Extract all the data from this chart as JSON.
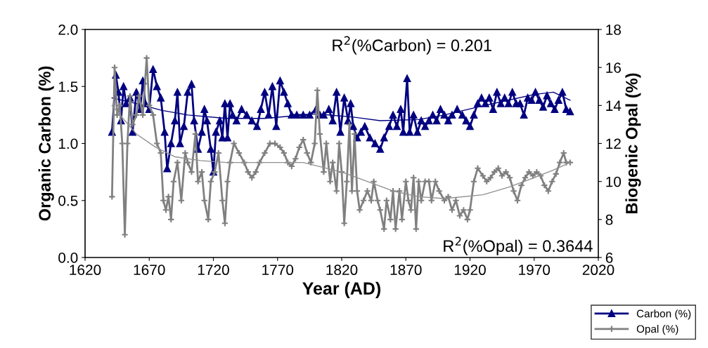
{
  "chart_data": {
    "type": "line",
    "xlabel": "Year (AD)",
    "ylabel": "Organic Carbon (%)",
    "y2label": "Biogenic Opal (%)",
    "xlim": [
      1620,
      2020
    ],
    "xticks": [
      1620,
      1670,
      1720,
      1770,
      1820,
      1870,
      1920,
      1970,
      2020
    ],
    "ylim": [
      0,
      2
    ],
    "yticks": [
      {
        "value": 0,
        "label": "0.0"
      },
      {
        "value": 0.5,
        "label": "0.5"
      },
      {
        "value": 1,
        "label": "1.0"
      },
      {
        "value": 1.5,
        "label": "1.5"
      },
      {
        "value": 2,
        "label": "2.0"
      }
    ],
    "y2lim": [
      6,
      18
    ],
    "y2ticks": [
      6,
      8,
      10,
      12,
      14,
      16,
      18
    ],
    "grid": false,
    "legend": "bottom right",
    "line_style": "solid",
    "annotations": [
      "R$^{2}$(%Carbon) = 0.201",
      "R$^{2}$(%Opal) = 0.3644"
    ],
    "series": [
      {
        "name": "Carbon (%)",
        "color": "#000080",
        "marker": "triangle",
        "x": [
          1641,
          1644,
          1646,
          1648,
          1650,
          1652,
          1655,
          1657,
          1660,
          1663,
          1665,
          1667,
          1670,
          1673,
          1676,
          1679,
          1682,
          1684,
          1687,
          1690,
          1692,
          1694,
          1697,
          1700,
          1703,
          1705,
          1708,
          1711,
          1713,
          1715,
          1718,
          1720,
          1722,
          1725,
          1727,
          1729,
          1731,
          1733,
          1735,
          1738,
          1742,
          1746,
          1750,
          1754,
          1757,
          1760,
          1763,
          1766,
          1769,
          1772,
          1775,
          1778,
          1781,
          1785,
          1790,
          1795,
          1800,
          1803,
          1806,
          1810,
          1813,
          1816,
          1819,
          1822,
          1825,
          1827,
          1829,
          1832,
          1835,
          1838,
          1842,
          1846,
          1850,
          1853,
          1857,
          1860,
          1863,
          1866,
          1868,
          1871,
          1873,
          1876,
          1879,
          1882,
          1885,
          1888,
          1891,
          1894,
          1897,
          1900,
          1903,
          1906,
          1910,
          1914,
          1917,
          1920,
          1923,
          1926,
          1929,
          1932,
          1935,
          1938,
          1941,
          1944,
          1947,
          1950,
          1953,
          1956,
          1959,
          1962,
          1965,
          1968,
          1971,
          1974,
          1977,
          1980,
          1983,
          1986,
          1989,
          1992,
          1995,
          1998
        ],
        "values": [
          1.1,
          1.6,
          1.45,
          1.2,
          1.5,
          1.35,
          1.4,
          1.1,
          1.45,
          1.3,
          1.55,
          1.35,
          1.3,
          1.65,
          1.5,
          1.4,
          1.1,
          0.78,
          1.0,
          1.2,
          1.45,
          1.0,
          1.15,
          1.45,
          1.52,
          1.2,
          0.95,
          1.1,
          1.3,
          1.2,
          0.95,
          0.75,
          1.1,
          1.2,
          1.05,
          1.35,
          1.05,
          1.35,
          1.25,
          1.2,
          1.3,
          1.25,
          1.2,
          1.15,
          1.3,
          1.45,
          1.25,
          1.5,
          1.15,
          1.55,
          1.45,
          1.35,
          1.25,
          1.25,
          1.25,
          1.25,
          1.3,
          1.25,
          1.25,
          1.3,
          1.2,
          1.45,
          1.1,
          1.4,
          1.2,
          1.35,
          1.15,
          1.05,
          1.1,
          1.15,
          1.05,
          1.0,
          0.95,
          1.05,
          1.15,
          1.25,
          1.15,
          1.3,
          1.1,
          1.57,
          1.1,
          1.25,
          1.1,
          1.2,
          1.15,
          1.2,
          1.25,
          1.2,
          1.3,
          1.25,
          1.2,
          1.25,
          1.3,
          1.25,
          1.2,
          1.15,
          1.25,
          1.35,
          1.4,
          1.35,
          1.4,
          1.3,
          1.45,
          1.35,
          1.4,
          1.35,
          1.45,
          1.35,
          1.35,
          1.25,
          1.4,
          1.38,
          1.45,
          1.38,
          1.32,
          1.42,
          1.35,
          1.3,
          1.38,
          1.45,
          1.3,
          1.28
        ]
      },
      {
        "name": "Opal (%)",
        "color": "#808080",
        "marker": "cross",
        "axis": "y2",
        "x": [
          1641,
          1643,
          1645,
          1647,
          1649,
          1651,
          1653,
          1655,
          1657,
          1660,
          1662,
          1665,
          1668,
          1670,
          1673,
          1676,
          1679,
          1681,
          1683,
          1685,
          1687,
          1689,
          1692,
          1695,
          1698,
          1700,
          1703,
          1706,
          1708,
          1711,
          1713,
          1716,
          1718,
          1721,
          1724,
          1727,
          1729,
          1731,
          1733,
          1736,
          1740,
          1744,
          1747,
          1750,
          1753,
          1756,
          1760,
          1764,
          1768,
          1772,
          1775,
          1778,
          1781,
          1784,
          1787,
          1790,
          1793,
          1796,
          1799,
          1801,
          1803,
          1806,
          1808,
          1811,
          1813,
          1816,
          1818,
          1820,
          1822,
          1824,
          1826,
          1828,
          1830,
          1832,
          1834,
          1837,
          1840,
          1843,
          1845,
          1848,
          1850,
          1853,
          1855,
          1858,
          1860,
          1862,
          1865,
          1867,
          1870,
          1872,
          1874,
          1876,
          1878,
          1880,
          1882,
          1885,
          1888,
          1890,
          1893,
          1896,
          1900,
          1903,
          1906,
          1909,
          1912,
          1915,
          1918,
          1920,
          1923,
          1926,
          1930,
          1933,
          1936,
          1939,
          1942,
          1945,
          1948,
          1951,
          1954,
          1957,
          1960,
          1963,
          1966,
          1969,
          1972,
          1975,
          1978,
          1981,
          1984,
          1987,
          1990,
          1993,
          1995,
          1998
        ],
        "values": [
          9.2,
          16,
          13.5,
          14,
          12,
          7.2,
          12,
          14.5,
          13,
          13.5,
          14.5,
          13.5,
          16.5,
          14,
          13.5,
          12,
          11.5,
          9,
          8.5,
          9.2,
          8,
          10,
          11,
          9,
          11.5,
          11,
          10.5,
          12.5,
          10,
          10.5,
          9,
          8,
          10,
          10.5,
          11.5,
          9,
          7.8,
          10,
          11,
          12,
          11.5,
          11,
          10.5,
          10.2,
          10.5,
          11,
          11.5,
          12,
          12,
          11.8,
          11.5,
          11,
          10.8,
          11.2,
          11.8,
          12.2,
          11.5,
          11,
          12,
          14.8,
          12.5,
          10.5,
          12,
          10,
          11,
          9.5,
          12,
          10.5,
          7.8,
          10,
          13,
          9.5,
          12.5,
          9.5,
          8.5,
          9,
          9.5,
          9,
          10,
          9,
          8.5,
          7.5,
          9,
          8,
          9.5,
          7.5,
          9.5,
          8,
          10,
          9,
          8.5,
          10.2,
          7.5,
          10,
          9,
          10,
          10,
          9,
          10,
          9.5,
          9,
          9.2,
          8.5,
          9,
          8.2,
          8.5,
          8,
          8.5,
          10,
          10.7,
          10.3,
          10,
          10.2,
          10.5,
          10.7,
          10.3,
          10.5,
          10.2,
          9.5,
          9.0,
          9.8,
          10.2,
          10.5,
          10.3,
          10.5,
          10.3,
          9.8,
          9.5,
          10,
          10.4,
          11.0,
          11.5,
          11,
          11
        ]
      },
      {
        "type": "line",
        "color": "#000080",
        "marker": "none",
        "x": [
          1641,
          1660,
          1680,
          1700,
          1730,
          1760,
          1800,
          1830,
          1850,
          1880,
          1900,
          1930,
          1950,
          1970,
          1985,
          1998
        ],
        "values": [
          1.4,
          1.35,
          1.29,
          1.25,
          1.22,
          1.22,
          1.26,
          1.23,
          1.2,
          1.21,
          1.25,
          1.33,
          1.38,
          1.43,
          1.45,
          1.38
        ]
      },
      {
        "type": "line",
        "color": "#909090",
        "marker": "none",
        "axis": "y2",
        "x": [
          1641,
          1660,
          1675,
          1690,
          1710,
          1730,
          1760,
          1790,
          1820,
          1840,
          1860,
          1880,
          1900,
          1930,
          1950,
          1970,
          1985,
          1998
        ],
        "values": [
          14,
          12.5,
          11.8,
          11.3,
          11.1,
          11.0,
          11.0,
          11.0,
          10.5,
          10.0,
          9.5,
          9.2,
          9.1,
          9.3,
          9.7,
          10.2,
          10.6,
          11
        ]
      }
    ]
  }
}
